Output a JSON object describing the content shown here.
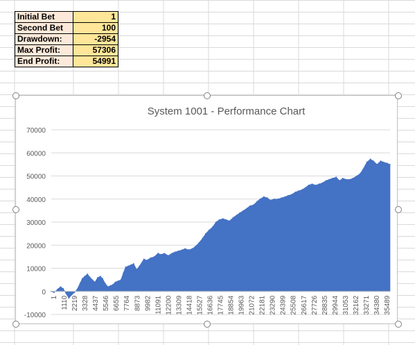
{
  "stats": {
    "rows": [
      {
        "label": "Initial Bet",
        "value": "1"
      },
      {
        "label": "Second Bet",
        "value": "100"
      },
      {
        "label": "Drawdown:",
        "value": "-2954"
      },
      {
        "label": "Max Profit:",
        "value": "57306"
      },
      {
        "label": "End Profit:",
        "value": "54991"
      }
    ]
  },
  "chart_data": {
    "type": "area",
    "title": "System 1001 - Performance Chart",
    "xlabel": "",
    "ylabel": "",
    "ylim": [
      -10000,
      70000
    ],
    "y_ticks": [
      "70000",
      "60000",
      "50000",
      "40000",
      "30000",
      "20000",
      "10000",
      "0",
      "-10000"
    ],
    "x_tick_labels": [
      "1",
      "1110",
      "2219",
      "3328",
      "4437",
      "5546",
      "6655",
      "7764",
      "8873",
      "9982",
      "11091",
      "12200",
      "13309",
      "14418",
      "15527",
      "16636",
      "17745",
      "18854",
      "19963",
      "21072",
      "22181",
      "23290",
      "24399",
      "25508",
      "26617",
      "27726",
      "28835",
      "29944",
      "31053",
      "32162",
      "33271",
      "34380",
      "35489"
    ],
    "x_range": [
      1,
      36500
    ],
    "grid": "horizontal",
    "legend": "none",
    "color": "#4472c4",
    "series": [
      {
        "x": [
          1,
          300,
          700,
          1000,
          1300,
          1600,
          1900,
          2219,
          2500,
          2800,
          3100,
          3328,
          3600,
          3900,
          4200,
          4437,
          4700,
          5000,
          5300,
          5546,
          5800,
          6100,
          6400,
          6655,
          6900,
          7200,
          7500,
          7764,
          8000,
          8300,
          8600,
          8873,
          9200,
          9500,
          9982,
          10300,
          10700,
          11091,
          11500,
          11800,
          12200,
          12600,
          13000,
          13309,
          13700,
          14100,
          14418,
          14800,
          15200,
          15527,
          15900,
          16300,
          16636,
          17000,
          17400,
          17745,
          18100,
          18500,
          18854,
          19200,
          19600,
          19963,
          20300,
          20700,
          21072,
          21400,
          21800,
          22181,
          22500,
          22900,
          23290,
          23600,
          24000,
          24399,
          24800,
          25200,
          25508,
          25900,
          26300,
          26617,
          27000,
          27400,
          27726,
          28100,
          28500,
          28835,
          29200,
          29600,
          29944,
          30300,
          30700,
          31053,
          31400,
          31800,
          32162,
          32500,
          32900,
          33271,
          33600,
          34000,
          34380,
          34700,
          35100,
          35489,
          35800,
          36200,
          36500
        ],
        "values": [
          0,
          -500,
          1000,
          2000,
          1200,
          -1000,
          -2954,
          -1500,
          -500,
          1000,
          3500,
          5500,
          6500,
          7500,
          6000,
          5000,
          4000,
          6000,
          6500,
          5500,
          3500,
          2000,
          2500,
          3000,
          4000,
          4500,
          5000,
          8000,
          10500,
          11000,
          11500,
          12000,
          9500,
          11000,
          14000,
          13500,
          14500,
          15000,
          16500,
          16000,
          16500,
          15500,
          16500,
          17000,
          17500,
          18000,
          18500,
          18000,
          18500,
          19500,
          21000,
          23000,
          25000,
          26500,
          28000,
          30000,
          31000,
          31500,
          31000,
          30500,
          32000,
          33000,
          34000,
          35000,
          36000,
          37000,
          37500,
          39000,
          40000,
          41000,
          40500,
          39500,
          40000,
          40000,
          40500,
          41000,
          41500,
          42000,
          43000,
          43500,
          44000,
          45000,
          46000,
          46500,
          46000,
          46500,
          47000,
          48000,
          48500,
          49000,
          49500,
          48000,
          49000,
          48500,
          48500,
          49000,
          50000,
          51000,
          53000,
          56000,
          57306,
          56500,
          55000,
          56500,
          56000,
          55500,
          54991
        ]
      }
    ]
  }
}
